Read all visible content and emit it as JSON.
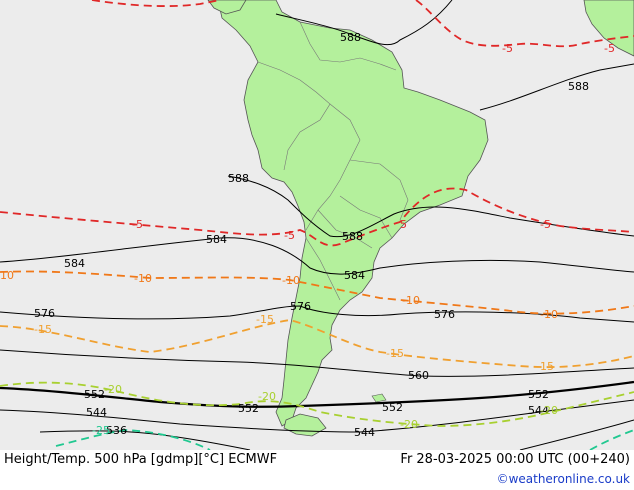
{
  "caption": {
    "left": "Height/Temp. 500 hPa [gdmp][°C] ECMWF",
    "right": "Fr 28-03-2025 00:00 UTC (00+240)"
  },
  "credit": "©weatheronline.co.uk",
  "colors": {
    "sea": "#ececec",
    "land": "#b4f09c",
    "height_contour": "#000000",
    "temp_minus5": "#e02828",
    "temp_minus10": "#f07818",
    "temp_minus15": "#f0a030",
    "temp_minus20": "#a8d030",
    "temp_minus25": "#20c890"
  },
  "height_labels": [
    "588",
    "588",
    "588",
    "588",
    "584",
    "584",
    "584",
    "576",
    "576",
    "576",
    "560",
    "552",
    "552",
    "552",
    "552",
    "544",
    "544",
    "544",
    "536"
  ],
  "temp_labels": [
    "-5",
    "-5",
    "-5",
    "-5",
    "5",
    "-5",
    "10",
    "-10",
    "-10",
    "-10",
    "-10",
    "-15",
    "-15",
    "-15",
    "-15",
    "-20",
    "-20",
    "-20",
    "-20",
    "-25"
  ]
}
